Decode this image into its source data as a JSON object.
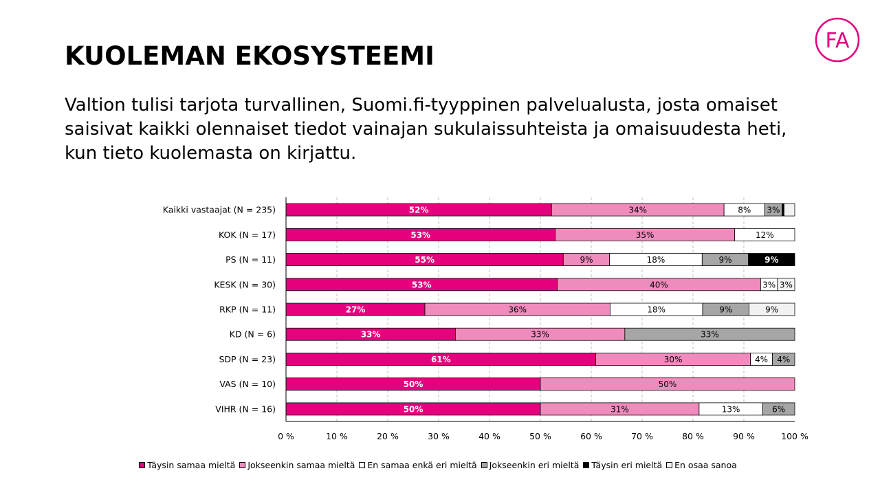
{
  "title": "KUOLEMAN EKOSYSTEEMI",
  "subtitle": "Valtion tulisi tarjota turvallinen, Suomi.fi-tyyppinen palvelualusta, josta omaiset saisivat kaikki olennaiset tiedot vainajan sukulaissuhteista ja omaisuudesta heti, kun tieto kuolemasta on kirjattu.",
  "logo": {
    "text": "FA",
    "color": "#e5007e"
  },
  "chart_data": {
    "type": "bar",
    "orientation": "horizontal",
    "stacked": true,
    "categories": [
      "Kaikki vastaajat (N = 235)",
      "KOK (N = 17)",
      "PS (N = 11)",
      "KESK (N = 30)",
      "RKP (N = 11)",
      "KD (N = 6)",
      "SDP (N = 23)",
      "VAS (N = 10)",
      "VIHR (N = 16)"
    ],
    "x_ticks": [
      "0 %",
      "10 %",
      "20 %",
      "30 %",
      "40 %",
      "50 %",
      "60 %",
      "70 %",
      "80 %",
      "90 %",
      "100 %"
    ],
    "xlim": [
      0,
      100
    ],
    "grid": true,
    "legend_position": "bottom",
    "series": [
      {
        "name": "Täysin samaa mieltä",
        "color": "#e5007e",
        "label_color": "#ffffff",
        "values": [
          52.2,
          52.9,
          54.5,
          53.3,
          27.3,
          33.3,
          60.9,
          50,
          50
        ],
        "labels": [
          "52%",
          "53%",
          "55%",
          "53%",
          "27%",
          "33%",
          "61%",
          "50%",
          "50%"
        ]
      },
      {
        "name": "Jokseenkin samaa mieltä",
        "color": "#f08cbd",
        "label_color": "#000000",
        "values": [
          33.9,
          35.3,
          9.1,
          40,
          36.4,
          33.3,
          30.4,
          50,
          31.2
        ],
        "labels": [
          "34%",
          "35%",
          "9%",
          "40%",
          "36%",
          "33%",
          "30%",
          "50%",
          "31%"
        ]
      },
      {
        "name": "En samaa enkä eri mieltä",
        "color": "#ffffff",
        "label_color": "#000000",
        "values": [
          8.0,
          11.8,
          18.2,
          3.3,
          18.2,
          0,
          4.3,
          0,
          12.5
        ],
        "labels": [
          "8%",
          "12%",
          "18%",
          "3%",
          "18%",
          "",
          "4%",
          "",
          "13%"
        ]
      },
      {
        "name": "Jokseenkin eri mieltä",
        "color": "#a6a6a6",
        "label_color": "#000000",
        "values": [
          3.4,
          0,
          9.1,
          0,
          9.1,
          33.4,
          4.4,
          0,
          6.3
        ],
        "labels": [
          "3%",
          "",
          "9%",
          "",
          "9%",
          "33%",
          "4%",
          "",
          "6%"
        ]
      },
      {
        "name": "Täysin eri mieltä",
        "color": "#000000",
        "label_color": "#ffffff",
        "values": [
          0.4,
          0,
          9.1,
          0,
          0,
          0,
          0,
          0,
          0
        ],
        "labels": [
          "",
          "",
          "9%",
          "",
          "",
          "",
          "",
          "",
          ""
        ]
      },
      {
        "name": "En osaa sanoa",
        "color": "#f2f2f2",
        "label_color": "#000000",
        "values": [
          2.1,
          0,
          0,
          3.4,
          9.0,
          0,
          0,
          0,
          0
        ],
        "labels": [
          "",
          "",
          "",
          "3%",
          "9%",
          "",
          "",
          "",
          ""
        ]
      }
    ]
  }
}
